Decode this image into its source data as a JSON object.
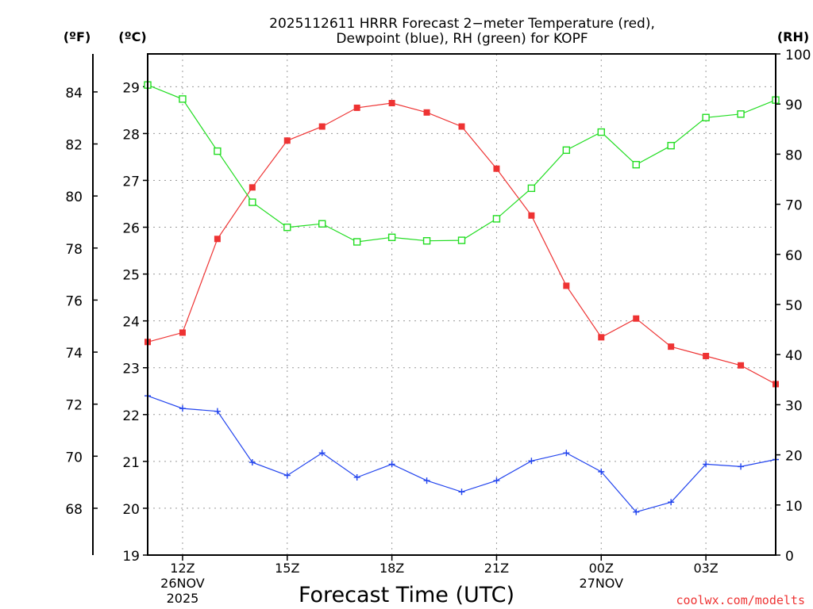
{
  "chart_data": {
    "type": "line",
    "title_line1": "2025112611 HRRR Forecast 2−meter Temperature (red),",
    "title_line2": "Dewpoint (blue), RH (green) for KOPF",
    "xlabel": "Forecast Time (UTC)",
    "unit_left_f": "(ºF)",
    "unit_left_c": "(ºC)",
    "unit_right": "(RH)",
    "watermark": "coolwx.com/modelts",
    "x_ticks": [
      {
        "hour": 1,
        "line1": "12Z",
        "line2": "26NOV",
        "line3": "2025"
      },
      {
        "hour": 4,
        "line1": "15Z",
        "line2": "",
        "line3": ""
      },
      {
        "hour": 7,
        "line1": "18Z",
        "line2": "",
        "line3": ""
      },
      {
        "hour": 10,
        "line1": "21Z",
        "line2": "",
        "line3": ""
      },
      {
        "hour": 13,
        "line1": "00Z",
        "line2": "27NOV",
        "line3": ""
      },
      {
        "hour": 16,
        "line1": "03Z",
        "line2": "",
        "line3": ""
      }
    ],
    "x_range": [
      0,
      18
    ],
    "celsius_range": [
      19,
      29.7
    ],
    "celsius_ticks": [
      19,
      20,
      21,
      22,
      23,
      24,
      25,
      26,
      27,
      28,
      29
    ],
    "fahrenheit_ticks": [
      68,
      70,
      72,
      74,
      76,
      78,
      80,
      82,
      84
    ],
    "rh_range": [
      0,
      100
    ],
    "rh_ticks": [
      0,
      10,
      20,
      30,
      40,
      50,
      60,
      70,
      80,
      90,
      100
    ],
    "series": [
      {
        "name": "2-meter Temperature",
        "unit": "C",
        "color": "#ee3333",
        "marker": "filled-square",
        "values": [
          23.55,
          23.75,
          25.75,
          26.85,
          27.85,
          28.15,
          28.55,
          28.65,
          28.45,
          28.15,
          27.25,
          26.25,
          24.75,
          23.65,
          24.05,
          23.45,
          23.25,
          23.05,
          22.65
        ]
      },
      {
        "name": "Dewpoint",
        "unit": "C",
        "color": "#2244ee",
        "marker": "plus",
        "values": [
          22.4,
          22.13,
          22.07,
          20.98,
          20.7,
          21.18,
          20.66,
          20.94,
          20.59,
          20.35,
          20.59,
          21.01,
          21.18,
          20.78,
          19.92,
          20.13,
          20.94,
          20.89,
          21.04
        ]
      },
      {
        "name": "RH",
        "unit": "%",
        "color": "#22dd22",
        "marker": "open-square",
        "values": [
          93.8,
          91.0,
          80.6,
          70.4,
          65.4,
          66.1,
          62.5,
          63.4,
          62.7,
          62.8,
          67.1,
          73.2,
          80.8,
          84.4,
          77.9,
          81.7,
          87.3,
          88.0,
          90.8
        ]
      }
    ]
  }
}
